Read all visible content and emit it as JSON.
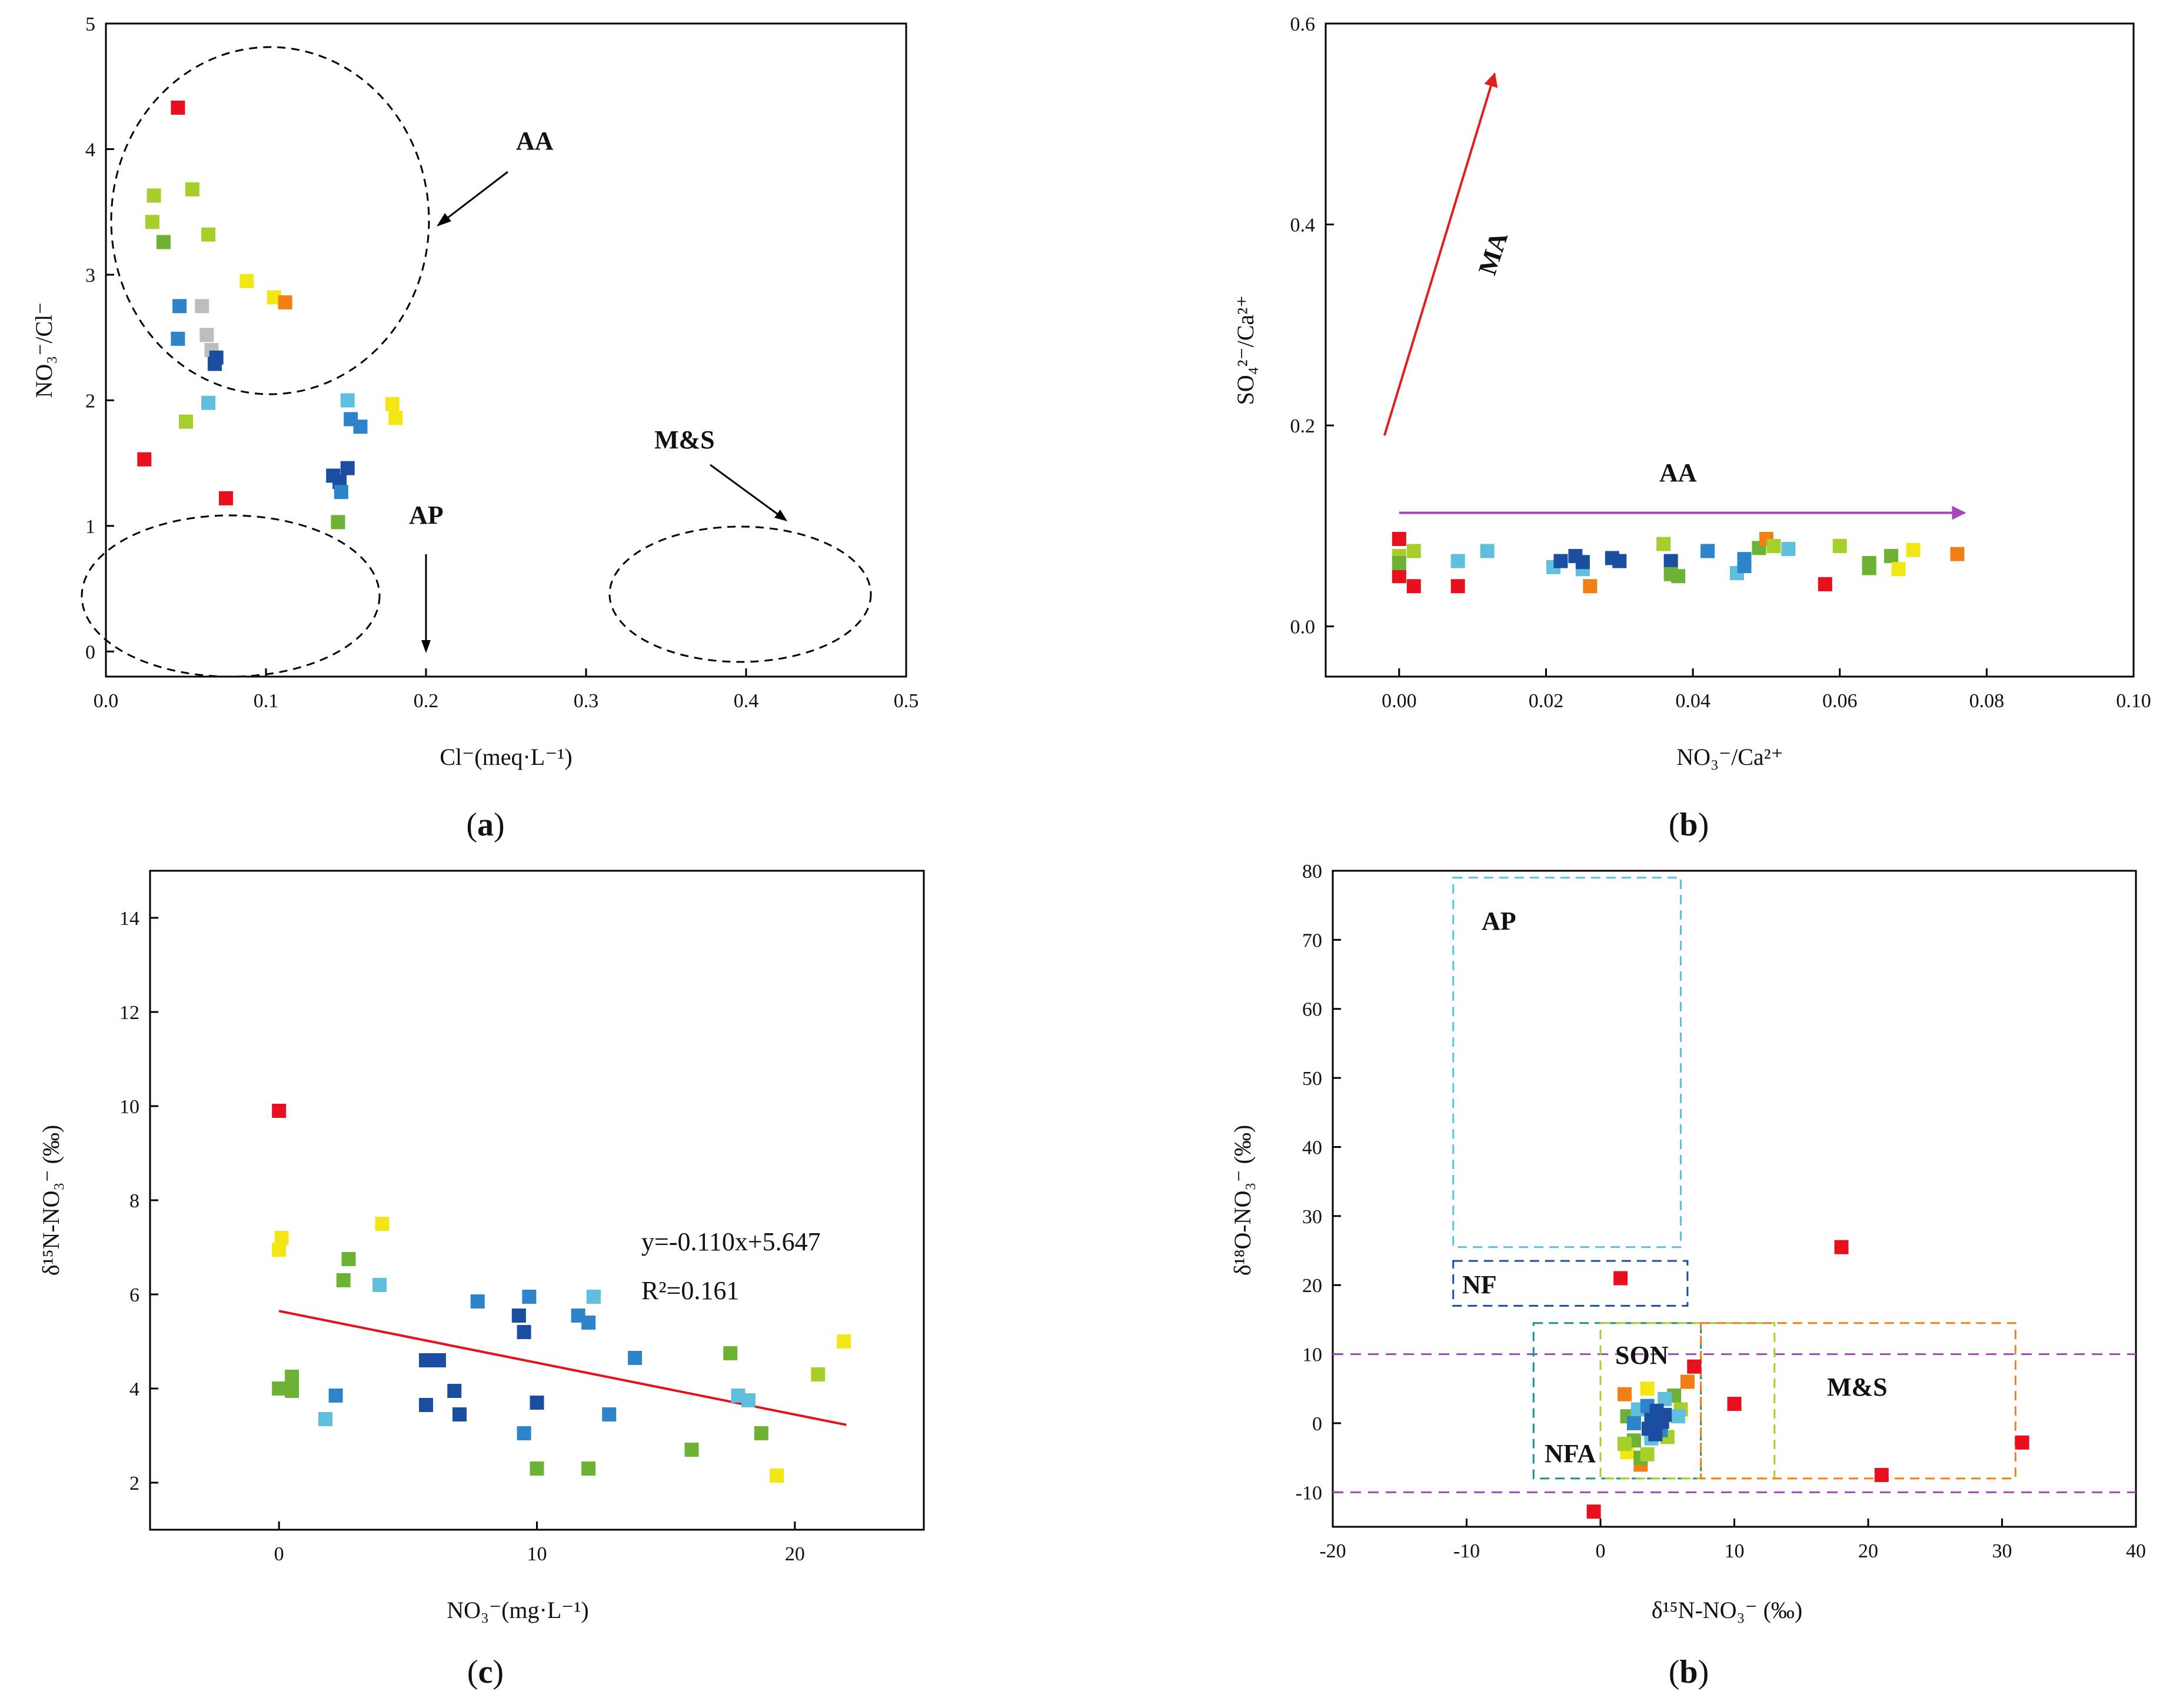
{
  "colors": {
    "red": "#e8101e",
    "orange": "#f07f16",
    "yellow": "#f2e715",
    "lime": "#a7cf2b",
    "green": "#6db234",
    "gray": "#bdbdbd",
    "lightblue": "#5fbfdc",
    "blue": "#2d84c8",
    "navy": "#1c4ea0",
    "teal": "#1f8e8e",
    "purple": "#a548b7",
    "darkred": "#e02020",
    "axis": "#000000"
  },
  "panels": {
    "a": {
      "caption": "a",
      "xlabel": "Cl⁻(meq·L⁻¹)",
      "ylabel": "NO₃⁻/Cl⁻",
      "annotations": [
        "AA",
        "AP",
        "M&S"
      ]
    },
    "b": {
      "caption": "b",
      "xlabel": "NO₃⁻/Ca²⁺",
      "ylabel": "SO₄²⁻/Ca²⁺",
      "annotations": [
        "MA",
        "AA"
      ]
    },
    "c": {
      "caption": "c",
      "xlabel": "NO₃⁻(mg·L⁻¹)",
      "ylabel": "δ¹⁵N-NO₃⁻ (‰)",
      "equation": "y=-0.110x+5.647",
      "r2": "R²=0.161"
    },
    "d": {
      "caption": "b",
      "xlabel": "δ¹⁵N-NO₃⁻ (‰)",
      "ylabel": "δ¹⁸O-NO₃⁻ (‰)",
      "annotations": [
        "AP",
        "NF",
        "SON",
        "NFA",
        "M&S"
      ]
    }
  },
  "chart_data": [
    {
      "type": "scatter",
      "id": "a",
      "title": "",
      "xlabel": "Cl⁻(meq·L⁻¹)",
      "ylabel": "NO₃⁻/Cl⁻",
      "xlim": [
        0,
        0.5
      ],
      "ylim": [
        -0.2,
        5
      ],
      "xticks": [
        0.0,
        0.1,
        0.2,
        0.3,
        0.4,
        0.5
      ],
      "xticklabels": [
        "0.0",
        "0.1",
        "0.2",
        "0.3",
        "0.4",
        "0.5"
      ],
      "yticks": [
        0,
        1,
        2,
        3,
        4,
        5
      ],
      "yticklabels": [
        "0",
        "1",
        "2",
        "3",
        "4",
        "5"
      ],
      "points": [
        {
          "x": 0.045,
          "y": 4.33,
          "c": "red"
        },
        {
          "x": 0.024,
          "y": 1.53,
          "c": "red"
        },
        {
          "x": 0.075,
          "y": 1.22,
          "c": "red"
        },
        {
          "x": 0.03,
          "y": 3.63,
          "c": "lime"
        },
        {
          "x": 0.029,
          "y": 3.42,
          "c": "lime"
        },
        {
          "x": 0.054,
          "y": 3.68,
          "c": "lime"
        },
        {
          "x": 0.064,
          "y": 3.32,
          "c": "lime"
        },
        {
          "x": 0.05,
          "y": 1.83,
          "c": "lime"
        },
        {
          "x": 0.036,
          "y": 3.26,
          "c": "green"
        },
        {
          "x": 0.145,
          "y": 1.03,
          "c": "green"
        },
        {
          "x": 0.088,
          "y": 2.95,
          "c": "yellow"
        },
        {
          "x": 0.105,
          "y": 2.82,
          "c": "yellow"
        },
        {
          "x": 0.179,
          "y": 1.97,
          "c": "yellow"
        },
        {
          "x": 0.181,
          "y": 1.86,
          "c": "yellow"
        },
        {
          "x": 0.112,
          "y": 2.78,
          "c": "orange"
        },
        {
          "x": 0.046,
          "y": 2.75,
          "c": "blue"
        },
        {
          "x": 0.045,
          "y": 2.49,
          "c": "blue"
        },
        {
          "x": 0.153,
          "y": 1.85,
          "c": "blue"
        },
        {
          "x": 0.159,
          "y": 1.79,
          "c": "blue"
        },
        {
          "x": 0.06,
          "y": 2.75,
          "c": "gray"
        },
        {
          "x": 0.063,
          "y": 2.52,
          "c": "gray"
        },
        {
          "x": 0.066,
          "y": 2.4,
          "c": "gray"
        },
        {
          "x": 0.069,
          "y": 2.34,
          "c": "navy"
        },
        {
          "x": 0.068,
          "y": 2.29,
          "c": "navy"
        },
        {
          "x": 0.064,
          "y": 1.98,
          "c": "lightblue"
        },
        {
          "x": 0.151,
          "y": 2.0,
          "c": "lightblue"
        },
        {
          "x": 0.142,
          "y": 1.4,
          "c": "navy"
        },
        {
          "x": 0.151,
          "y": 1.46,
          "c": "navy"
        },
        {
          "x": 0.146,
          "y": 1.35,
          "c": "navy"
        },
        {
          "x": 0.147,
          "y": 1.27,
          "c": "blue"
        }
      ]
    },
    {
      "type": "scatter",
      "id": "b",
      "title": "",
      "xlabel": "NO₃⁻/Ca²⁺",
      "ylabel": "SO₄²⁻/Ca²⁺",
      "xlim": [
        -0.01,
        0.1
      ],
      "ylim": [
        -0.05,
        0.6
      ],
      "xticks": [
        0.0,
        0.02,
        0.04,
        0.06,
        0.08,
        0.1
      ],
      "xticklabels": [
        "0.00",
        "0.02",
        "0.04",
        "0.06",
        "0.08",
        "0.10"
      ],
      "yticks": [
        0.0,
        0.2,
        0.4,
        0.6
      ],
      "yticklabels": [
        "0.0",
        "0.2",
        "0.4",
        "0.6"
      ],
      "points": [
        {
          "x": 0.0,
          "y": 0.087,
          "c": "red"
        },
        {
          "x": 0.0,
          "y": 0.05,
          "c": "red"
        },
        {
          "x": 0.002,
          "y": 0.04,
          "c": "red"
        },
        {
          "x": 0.008,
          "y": 0.04,
          "c": "red"
        },
        {
          "x": 0.058,
          "y": 0.042,
          "c": "red"
        },
        {
          "x": 0.0,
          "y": 0.07,
          "c": "lime"
        },
        {
          "x": 0.0,
          "y": 0.063,
          "c": "green"
        },
        {
          "x": 0.002,
          "y": 0.075,
          "c": "lime"
        },
        {
          "x": 0.008,
          "y": 0.065,
          "c": "lightblue"
        },
        {
          "x": 0.012,
          "y": 0.075,
          "c": "lightblue"
        },
        {
          "x": 0.021,
          "y": 0.059,
          "c": "lightblue"
        },
        {
          "x": 0.022,
          "y": 0.065,
          "c": "navy"
        },
        {
          "x": 0.024,
          "y": 0.07,
          "c": "navy"
        },
        {
          "x": 0.025,
          "y": 0.057,
          "c": "lightblue"
        },
        {
          "x": 0.025,
          "y": 0.064,
          "c": "navy"
        },
        {
          "x": 0.026,
          "y": 0.04,
          "c": "orange"
        },
        {
          "x": 0.029,
          "y": 0.068,
          "c": "navy"
        },
        {
          "x": 0.03,
          "y": 0.065,
          "c": "navy"
        },
        {
          "x": 0.036,
          "y": 0.082,
          "c": "lime"
        },
        {
          "x": 0.037,
          "y": 0.065,
          "c": "navy"
        },
        {
          "x": 0.037,
          "y": 0.052,
          "c": "green"
        },
        {
          "x": 0.038,
          "y": 0.05,
          "c": "green"
        },
        {
          "x": 0.042,
          "y": 0.075,
          "c": "blue"
        },
        {
          "x": 0.046,
          "y": 0.053,
          "c": "lightblue"
        },
        {
          "x": 0.047,
          "y": 0.067,
          "c": "blue"
        },
        {
          "x": 0.047,
          "y": 0.06,
          "c": "blue"
        },
        {
          "x": 0.049,
          "y": 0.078,
          "c": "green"
        },
        {
          "x": 0.05,
          "y": 0.087,
          "c": "orange"
        },
        {
          "x": 0.051,
          "y": 0.08,
          "c": "lime"
        },
        {
          "x": 0.053,
          "y": 0.077,
          "c": "lightblue"
        },
        {
          "x": 0.06,
          "y": 0.08,
          "c": "lime"
        },
        {
          "x": 0.064,
          "y": 0.063,
          "c": "green"
        },
        {
          "x": 0.064,
          "y": 0.058,
          "c": "green"
        },
        {
          "x": 0.067,
          "y": 0.07,
          "c": "green"
        },
        {
          "x": 0.068,
          "y": 0.057,
          "c": "yellow"
        },
        {
          "x": 0.07,
          "y": 0.076,
          "c": "yellow"
        },
        {
          "x": 0.076,
          "y": 0.072,
          "c": "orange"
        }
      ],
      "arrows": [
        {
          "label": "MA",
          "from": [
            -0.002,
            0.19
          ],
          "to": [
            0.013,
            0.55
          ],
          "c": "darkred"
        },
        {
          "label": "AA",
          "from": [
            0.0,
            0.113
          ],
          "to": [
            0.077,
            0.113
          ],
          "c": "purple"
        }
      ]
    },
    {
      "type": "scatter",
      "id": "c",
      "title": "",
      "xlabel": "NO₃⁻(mg·L⁻¹)",
      "ylabel": "δ¹⁵N-NO₃⁻ (‰)",
      "xlim": [
        -5,
        25
      ],
      "ylim": [
        1,
        15
      ],
      "xticks": [
        0,
        10,
        20
      ],
      "xticklabels": [
        "0",
        "10",
        "20"
      ],
      "yticks": [
        2,
        4,
        6,
        8,
        10,
        12,
        14
      ],
      "yticklabels": [
        "2",
        "4",
        "6",
        "8",
        "10",
        "12",
        "14"
      ],
      "fit": {
        "slope": -0.11,
        "intercept": 5.647,
        "r2": 0.161,
        "x_range": [
          0,
          22
        ],
        "c": "red"
      },
      "points": [
        {
          "x": 0.0,
          "y": 9.9,
          "c": "red"
        },
        {
          "x": 0.1,
          "y": 7.2,
          "c": "yellow"
        },
        {
          "x": 0.0,
          "y": 6.95,
          "c": "yellow"
        },
        {
          "x": 4.0,
          "y": 7.5,
          "c": "yellow"
        },
        {
          "x": 19.3,
          "y": 2.15,
          "c": "yellow"
        },
        {
          "x": 21.9,
          "y": 5.0,
          "c": "yellow"
        },
        {
          "x": 0.0,
          "y": 4.0,
          "c": "green"
        },
        {
          "x": 0.5,
          "y": 4.25,
          "c": "green"
        },
        {
          "x": 0.5,
          "y": 3.95,
          "c": "green"
        },
        {
          "x": 2.5,
          "y": 6.3,
          "c": "green"
        },
        {
          "x": 2.7,
          "y": 6.75,
          "c": "green"
        },
        {
          "x": 10.0,
          "y": 2.3,
          "c": "green"
        },
        {
          "x": 12.0,
          "y": 2.3,
          "c": "green"
        },
        {
          "x": 16.0,
          "y": 2.7,
          "c": "green"
        },
        {
          "x": 17.5,
          "y": 4.75,
          "c": "green"
        },
        {
          "x": 18.7,
          "y": 3.05,
          "c": "green"
        },
        {
          "x": 20.9,
          "y": 4.3,
          "c": "lime"
        },
        {
          "x": 1.8,
          "y": 3.35,
          "c": "lightblue"
        },
        {
          "x": 3.9,
          "y": 6.2,
          "c": "lightblue"
        },
        {
          "x": 12.2,
          "y": 5.95,
          "c": "lightblue"
        },
        {
          "x": 17.8,
          "y": 3.85,
          "c": "lightblue"
        },
        {
          "x": 18.2,
          "y": 3.75,
          "c": "lightblue"
        },
        {
          "x": 2.2,
          "y": 3.85,
          "c": "blue"
        },
        {
          "x": 7.7,
          "y": 5.85,
          "c": "blue"
        },
        {
          "x": 9.5,
          "y": 3.05,
          "c": "blue"
        },
        {
          "x": 9.7,
          "y": 5.95,
          "c": "blue"
        },
        {
          "x": 11.6,
          "y": 5.55,
          "c": "blue"
        },
        {
          "x": 12.0,
          "y": 5.4,
          "c": "blue"
        },
        {
          "x": 12.8,
          "y": 3.45,
          "c": "blue"
        },
        {
          "x": 13.8,
          "y": 4.65,
          "c": "blue"
        },
        {
          "x": 5.7,
          "y": 4.6,
          "c": "navy"
        },
        {
          "x": 6.2,
          "y": 4.6,
          "c": "navy"
        },
        {
          "x": 5.7,
          "y": 3.65,
          "c": "navy"
        },
        {
          "x": 6.8,
          "y": 3.95,
          "c": "navy"
        },
        {
          "x": 7.0,
          "y": 3.45,
          "c": "navy"
        },
        {
          "x": 9.3,
          "y": 5.55,
          "c": "navy"
        },
        {
          "x": 9.5,
          "y": 5.2,
          "c": "navy"
        },
        {
          "x": 10.0,
          "y": 3.7,
          "c": "navy"
        }
      ]
    },
    {
      "type": "scatter",
      "id": "d",
      "title": "",
      "xlabel": "δ¹⁵N-NO₃⁻ (‰)",
      "ylabel": "δ¹⁸O-NO₃⁻ (‰)",
      "xlim": [
        -20,
        40
      ],
      "ylim": [
        -15,
        80
      ],
      "xticks": [
        -20,
        -10,
        0,
        10,
        20,
        30,
        40
      ],
      "xticklabels": [
        "-20",
        "-10",
        "0",
        "10",
        "20",
        "30",
        "40"
      ],
      "yticks": [
        -10,
        0,
        10,
        20,
        30,
        40,
        50,
        60,
        70,
        80
      ],
      "yticklabels": [
        "-10",
        "0",
        "10",
        "20",
        "30",
        "40",
        "50",
        "60",
        "70",
        "80"
      ],
      "hlines": [
        {
          "y": 10,
          "c": "purple"
        },
        {
          "y": -10,
          "c": "purple"
        }
      ],
      "regions": [
        {
          "label": "AP",
          "x0": -11,
          "x1": 6,
          "y0": 25.5,
          "y1": 79,
          "c": "lightblue"
        },
        {
          "label": "NF",
          "x0": -11,
          "x1": 6.5,
          "y0": 17,
          "y1": 23.5,
          "c": "navy"
        },
        {
          "label": "NFA",
          "x0": -5,
          "x1": 7.5,
          "y0": -8,
          "y1": 14.5,
          "c": "teal"
        },
        {
          "label": "SON",
          "x0": 0,
          "x1": 13,
          "y0": -8,
          "y1": 14.5,
          "c": "lime"
        },
        {
          "label": "M&S",
          "x0": 7.5,
          "x1": 31,
          "y0": -8,
          "y1": 14.5,
          "c": "orange"
        }
      ],
      "points": [
        {
          "x": 1.5,
          "y": 21,
          "c": "red"
        },
        {
          "x": 18,
          "y": 25.5,
          "c": "red"
        },
        {
          "x": 7,
          "y": 8.2,
          "c": "red"
        },
        {
          "x": 10,
          "y": 2.8,
          "c": "red"
        },
        {
          "x": 31.5,
          "y": -2.8,
          "c": "red"
        },
        {
          "x": 21,
          "y": -7.5,
          "c": "red"
        },
        {
          "x": -0.5,
          "y": -12.8,
          "c": "red"
        },
        {
          "x": 1.8,
          "y": 4.2,
          "c": "orange"
        },
        {
          "x": 6.5,
          "y": 6,
          "c": "orange"
        },
        {
          "x": 3,
          "y": -6,
          "c": "orange"
        },
        {
          "x": 3.5,
          "y": 5,
          "c": "yellow"
        },
        {
          "x": 2,
          "y": -4.2,
          "c": "yellow"
        },
        {
          "x": 2,
          "y": 1,
          "c": "green"
        },
        {
          "x": 2.5,
          "y": -2.5,
          "c": "green"
        },
        {
          "x": 3,
          "y": -5,
          "c": "green"
        },
        {
          "x": 5.5,
          "y": 4,
          "c": "green"
        },
        {
          "x": 1.8,
          "y": -3,
          "c": "lime"
        },
        {
          "x": 3.5,
          "y": -4.5,
          "c": "lime"
        },
        {
          "x": 6,
          "y": 2,
          "c": "lime"
        },
        {
          "x": 5,
          "y": -2,
          "c": "lime"
        },
        {
          "x": 2.8,
          "y": 2,
          "c": "lightblue"
        },
        {
          "x": 3.8,
          "y": -2.2,
          "c": "lightblue"
        },
        {
          "x": 5.8,
          "y": 1,
          "c": "lightblue"
        },
        {
          "x": 4.8,
          "y": 3.5,
          "c": "lightblue"
        },
        {
          "x": 2.5,
          "y": 0,
          "c": "blue"
        },
        {
          "x": 4.5,
          "y": -1,
          "c": "blue"
        },
        {
          "x": 3.5,
          "y": 2.5,
          "c": "blue"
        },
        {
          "x": 3.8,
          "y": 0.5,
          "c": "navy"
        },
        {
          "x": 4.2,
          "y": 1.8,
          "c": "navy"
        },
        {
          "x": 4.6,
          "y": 0.2,
          "c": "navy"
        },
        {
          "x": 3.6,
          "y": -0.8,
          "c": "navy"
        },
        {
          "x": 4.1,
          "y": -1.6,
          "c": "navy"
        },
        {
          "x": 4.8,
          "y": 1.2,
          "c": "navy"
        }
      ]
    }
  ]
}
